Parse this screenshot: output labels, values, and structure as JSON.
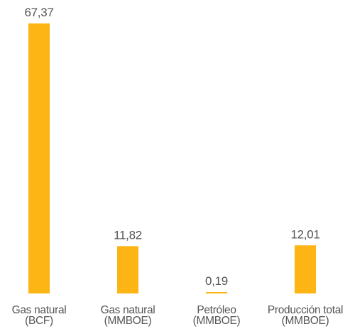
{
  "chart_data": {
    "type": "bar",
    "categories": [
      [
        "Gas natural",
        "(BCF)"
      ],
      [
        "Gas natural",
        "(MMBOE)"
      ],
      [
        "Petróleo",
        "(MMBOE)"
      ],
      [
        "Producción total",
        "(MMBOE)"
      ]
    ],
    "values": [
      67.37,
      11.82,
      0.19,
      12.01
    ],
    "value_labels": [
      "67,37",
      "11,82",
      "0,19",
      "12,01"
    ],
    "bar_color": "#FDB515",
    "text_color": "#555555",
    "grid": false,
    "legend": "none"
  }
}
